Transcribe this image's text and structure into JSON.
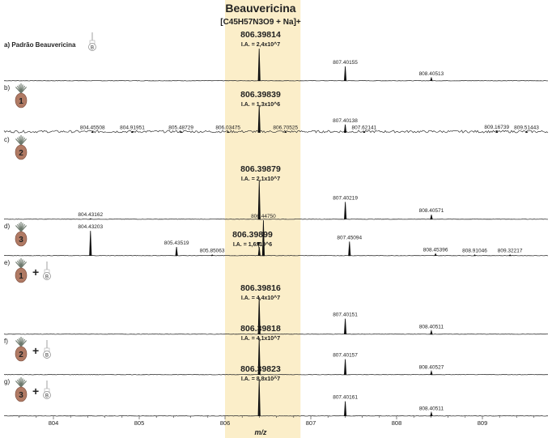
{
  "chart_data": {
    "type": "line",
    "subtype": "stacked mass spectra",
    "title": "Beauvericina",
    "formula": "[C45H57N3O9 + Na]+",
    "xlabel": "m/z",
    "xlim": [
      803.4,
      809.78
    ],
    "xticks": [
      "804",
      "805",
      "806",
      "807",
      "808",
      "809"
    ],
    "highlight_range": [
      806.0,
      806.88
    ],
    "highlight_color": "#fbeec9",
    "panels": [
      {
        "label": "a) Padrão Beauvericina",
        "icon": "vial-icon",
        "vial_letter": "B",
        "main_mz": "806.39814",
        "ia": "I.A. = 2,4x10^7",
        "peaks": [
          {
            "mz": 806.39814,
            "rel": 1.0
          },
          {
            "mz": 807.40155,
            "rel": 0.45,
            "label": "807.40155"
          },
          {
            "mz": 808.40513,
            "rel": 0.1,
            "label": "808.40513"
          }
        ]
      },
      {
        "label": "b)",
        "icon": "pineapple-icon",
        "sample": "1",
        "main_mz": "806.39839",
        "ia": "I.A. = 1,3x10^6",
        "noisy": true,
        "peaks": [
          {
            "mz": 806.39839,
            "rel": 1.0
          },
          {
            "mz": 807.40138,
            "rel": 0.3,
            "label": "807.40138"
          },
          {
            "mz": 804.45508,
            "rel": 0.05,
            "label": "804.45508"
          },
          {
            "mz": 804.91951,
            "rel": 0.05,
            "label": "804.91951"
          },
          {
            "mz": 805.48729,
            "rel": 0.05,
            "label": "805.48729"
          },
          {
            "mz": 806.03475,
            "rel": 0.05,
            "label": "806.03475"
          },
          {
            "mz": 806.70525,
            "rel": 0.05,
            "label": "806.70525"
          },
          {
            "mz": 807.62141,
            "rel": 0.05,
            "label": "807.62141"
          },
          {
            "mz": 809.16739,
            "rel": 0.06,
            "label": "809.16739"
          },
          {
            "mz": 809.51443,
            "rel": 0.05,
            "label": "809.51443"
          }
        ]
      },
      {
        "label": "c)",
        "icon": "pineapple-icon",
        "sample": "2",
        "main_mz": "806.39879",
        "ia": "I.A. = 2,1x10^7",
        "peaks": [
          {
            "mz": 806.39879,
            "rel": 1.0
          },
          {
            "mz": 807.40219,
            "rel": 0.45,
            "label": "807.40219"
          },
          {
            "mz": 808.40571,
            "rel": 0.12,
            "label": "808.40571"
          },
          {
            "mz": 804.43162,
            "rel": 0.02,
            "label": "804.43162"
          }
        ]
      },
      {
        "label": "d)",
        "icon": "pineapple-icon",
        "sample": "3",
        "main_mz": "806.39899",
        "ia": "I.A. = 1,6x10^6",
        "peaks": [
          {
            "mz": 806.4475,
            "rel": 1.0,
            "label": "806.44750"
          },
          {
            "mz": 806.39899,
            "rel": 0.25
          },
          {
            "mz": 804.43203,
            "rel": 0.7,
            "label": "804.43203"
          },
          {
            "mz": 805.43519,
            "rel": 0.25,
            "label": "805.43519"
          },
          {
            "mz": 805.85063,
            "rel": 0.03,
            "label": "805.85063"
          },
          {
            "mz": 807.45094,
            "rel": 0.4,
            "label": "807.45094"
          },
          {
            "mz": 808.45396,
            "rel": 0.06,
            "label": "808.45396"
          },
          {
            "mz": 808.91046,
            "rel": 0.03,
            "label": "808.91046"
          },
          {
            "mz": 809.32217,
            "rel": 0.03,
            "label": "809.32217"
          }
        ]
      },
      {
        "label": "e)",
        "icon": "pineapple-plus-vial-icon",
        "sample": "1",
        "plus": "+",
        "vial_letter": "B",
        "main_mz": "806.39816",
        "ia": "I.A. = 4,4x10^7",
        "peaks": [
          {
            "mz": 806.39816,
            "rel": 1.0
          },
          {
            "mz": 807.40151,
            "rel": 0.42,
            "label": "807.40151"
          },
          {
            "mz": 808.40511,
            "rel": 0.1,
            "label": "808.40511"
          }
        ]
      },
      {
        "label": "f)",
        "icon": "pineapple-plus-vial-icon",
        "sample": "2",
        "plus": "+",
        "vial_letter": "B",
        "main_mz": "806.39818",
        "ia": "I.A. = 4,1x10^7",
        "peaks": [
          {
            "mz": 806.39818,
            "rel": 1.0
          },
          {
            "mz": 807.40157,
            "rel": 0.42,
            "label": "807.40157"
          },
          {
            "mz": 808.40527,
            "rel": 0.1,
            "label": "808.40527"
          }
        ]
      },
      {
        "label": "g)",
        "icon": "pineapple-plus-vial-icon",
        "sample": "3",
        "plus": "+",
        "vial_letter": "B",
        "main_mz": "806.39823",
        "ia": "I.A. = 8,8x10^7",
        "peaks": [
          {
            "mz": 806.39823,
            "rel": 1.0
          },
          {
            "mz": 807.40161,
            "rel": 0.4,
            "label": "807.40161"
          },
          {
            "mz": 808.40511,
            "rel": 0.1,
            "label": "808.40511"
          }
        ]
      }
    ]
  }
}
